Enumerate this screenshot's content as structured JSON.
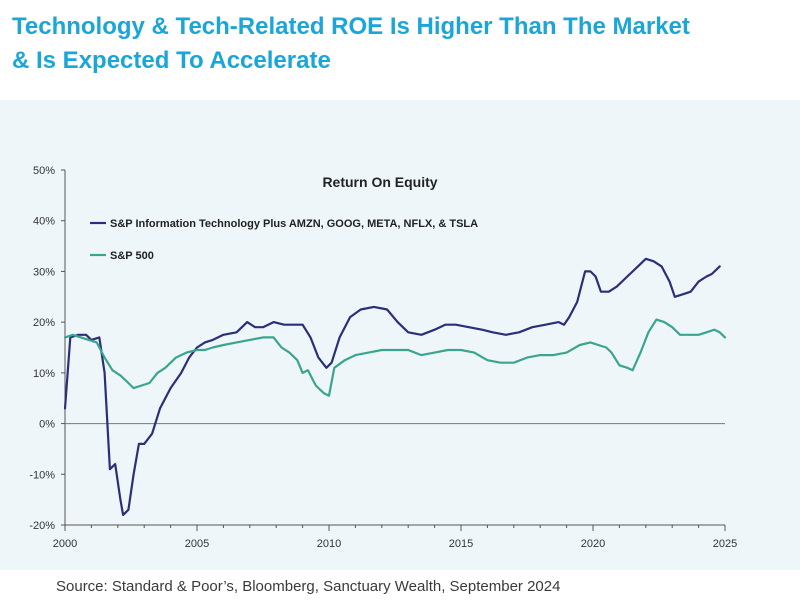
{
  "page": {
    "title_line1": "Technology & Tech-Related ROE Is Higher Than The Market",
    "title_line2": "& Is Expected To Accelerate",
    "source": "Source: Standard & Poor’s, Bloomberg, Sanctuary Wealth, September 2024"
  },
  "colors": {
    "title": "#1aa6d8",
    "panel_bg": "#eef6f9",
    "series_it": "#2a2f7a",
    "series_sp500": "#3aa58e",
    "axis": "#555555"
  },
  "chart_data": {
    "type": "line",
    "title": "Return On Equity",
    "xlabel": "",
    "ylabel": "",
    "xlim": [
      2000,
      2025
    ],
    "ylim": [
      -20,
      50
    ],
    "x_ticks": [
      2000,
      2005,
      2010,
      2015,
      2020,
      2025
    ],
    "x_tick_labels": [
      "2000",
      "2005",
      "2010",
      "2015",
      "2020",
      "2025"
    ],
    "y_ticks": [
      -20,
      -10,
      0,
      10,
      20,
      30,
      40,
      50
    ],
    "y_tick_labels": [
      "-20%",
      "-10%",
      "0%",
      "10%",
      "20%",
      "30%",
      "40%",
      "50%"
    ],
    "legend_position": "top-left",
    "series": [
      {
        "name": "S&P Information Technology Plus AMZN, GOOG, META, NFLX, & TSLA",
        "color": "#2a2f7a",
        "points": [
          [
            2000.0,
            3
          ],
          [
            2000.2,
            17
          ],
          [
            2000.5,
            17.5
          ],
          [
            2000.8,
            17.5
          ],
          [
            2001.0,
            16.5
          ],
          [
            2001.3,
            17
          ],
          [
            2001.5,
            10
          ],
          [
            2001.7,
            -9
          ],
          [
            2001.9,
            -8
          ],
          [
            2002.1,
            -15
          ],
          [
            2002.2,
            -18
          ],
          [
            2002.4,
            -17
          ],
          [
            2002.6,
            -10
          ],
          [
            2002.8,
            -4
          ],
          [
            2003.0,
            -4
          ],
          [
            2003.3,
            -2
          ],
          [
            2003.6,
            3
          ],
          [
            2004.0,
            7
          ],
          [
            2004.4,
            10
          ],
          [
            2004.7,
            13
          ],
          [
            2005.0,
            15
          ],
          [
            2005.3,
            16
          ],
          [
            2005.6,
            16.5
          ],
          [
            2006.0,
            17.5
          ],
          [
            2006.5,
            18
          ],
          [
            2006.9,
            20
          ],
          [
            2007.2,
            19
          ],
          [
            2007.5,
            19
          ],
          [
            2007.9,
            20
          ],
          [
            2008.3,
            19.5
          ],
          [
            2008.7,
            19.5
          ],
          [
            2009.0,
            19.5
          ],
          [
            2009.3,
            17
          ],
          [
            2009.6,
            13
          ],
          [
            2009.9,
            11
          ],
          [
            2010.1,
            12
          ],
          [
            2010.4,
            17
          ],
          [
            2010.8,
            21
          ],
          [
            2011.2,
            22.5
          ],
          [
            2011.7,
            23
          ],
          [
            2012.2,
            22.5
          ],
          [
            2012.6,
            20
          ],
          [
            2013.0,
            18
          ],
          [
            2013.5,
            17.5
          ],
          [
            2014.0,
            18.5
          ],
          [
            2014.4,
            19.5
          ],
          [
            2014.8,
            19.5
          ],
          [
            2015.3,
            19
          ],
          [
            2015.8,
            18.5
          ],
          [
            2016.2,
            18
          ],
          [
            2016.7,
            17.5
          ],
          [
            2017.2,
            18
          ],
          [
            2017.7,
            19
          ],
          [
            2018.2,
            19.5
          ],
          [
            2018.7,
            20
          ],
          [
            2018.9,
            19.5
          ],
          [
            2019.1,
            21
          ],
          [
            2019.4,
            24
          ],
          [
            2019.7,
            30
          ],
          [
            2019.9,
            30
          ],
          [
            2020.1,
            29
          ],
          [
            2020.3,
            26
          ],
          [
            2020.6,
            26
          ],
          [
            2020.9,
            27
          ],
          [
            2021.3,
            29
          ],
          [
            2021.7,
            31
          ],
          [
            2022.0,
            32.5
          ],
          [
            2022.3,
            32
          ],
          [
            2022.6,
            31
          ],
          [
            2022.9,
            28
          ],
          [
            2023.1,
            25
          ],
          [
            2023.4,
            25.5
          ],
          [
            2023.7,
            26
          ],
          [
            2024.0,
            28
          ],
          [
            2024.3,
            29
          ],
          [
            2024.5,
            29.5
          ],
          [
            2024.8,
            31
          ]
        ]
      },
      {
        "name": "S&P 500",
        "color": "#3aa58e",
        "points": [
          [
            2000.0,
            17
          ],
          [
            2000.3,
            17.5
          ],
          [
            2000.6,
            17
          ],
          [
            2000.9,
            16.5
          ],
          [
            2001.2,
            16
          ],
          [
            2001.5,
            13
          ],
          [
            2001.8,
            10.5
          ],
          [
            2002.1,
            9.5
          ],
          [
            2002.4,
            8
          ],
          [
            2002.6,
            7
          ],
          [
            2002.9,
            7.5
          ],
          [
            2003.2,
            8
          ],
          [
            2003.5,
            10
          ],
          [
            2003.8,
            11
          ],
          [
            2004.2,
            13
          ],
          [
            2004.6,
            14
          ],
          [
            2005.0,
            14.5
          ],
          [
            2005.3,
            14.5
          ],
          [
            2005.6,
            15
          ],
          [
            2006.0,
            15.5
          ],
          [
            2006.5,
            16
          ],
          [
            2007.0,
            16.5
          ],
          [
            2007.5,
            17
          ],
          [
            2007.9,
            17
          ],
          [
            2008.2,
            15
          ],
          [
            2008.5,
            14
          ],
          [
            2008.8,
            12.5
          ],
          [
            2009.0,
            10
          ],
          [
            2009.2,
            10.5
          ],
          [
            2009.5,
            7.5
          ],
          [
            2009.8,
            6
          ],
          [
            2010.0,
            5.5
          ],
          [
            2010.2,
            11
          ],
          [
            2010.6,
            12.5
          ],
          [
            2011.0,
            13.5
          ],
          [
            2011.5,
            14
          ],
          [
            2012.0,
            14.5
          ],
          [
            2012.5,
            14.5
          ],
          [
            2013.0,
            14.5
          ],
          [
            2013.5,
            13.5
          ],
          [
            2014.0,
            14
          ],
          [
            2014.5,
            14.5
          ],
          [
            2015.0,
            14.5
          ],
          [
            2015.5,
            14
          ],
          [
            2016.0,
            12.5
          ],
          [
            2016.5,
            12
          ],
          [
            2017.0,
            12
          ],
          [
            2017.5,
            13
          ],
          [
            2018.0,
            13.5
          ],
          [
            2018.5,
            13.5
          ],
          [
            2019.0,
            14
          ],
          [
            2019.5,
            15.5
          ],
          [
            2019.9,
            16
          ],
          [
            2020.2,
            15.5
          ],
          [
            2020.5,
            15
          ],
          [
            2020.7,
            14
          ],
          [
            2021.0,
            11.5
          ],
          [
            2021.3,
            11
          ],
          [
            2021.5,
            10.5
          ],
          [
            2021.8,
            14
          ],
          [
            2022.1,
            18
          ],
          [
            2022.4,
            20.5
          ],
          [
            2022.7,
            20
          ],
          [
            2023.0,
            19
          ],
          [
            2023.3,
            17.5
          ],
          [
            2023.6,
            17.5
          ],
          [
            2024.0,
            17.5
          ],
          [
            2024.3,
            18
          ],
          [
            2024.6,
            18.5
          ],
          [
            2024.8,
            18
          ],
          [
            2025.0,
            17
          ]
        ]
      }
    ]
  }
}
